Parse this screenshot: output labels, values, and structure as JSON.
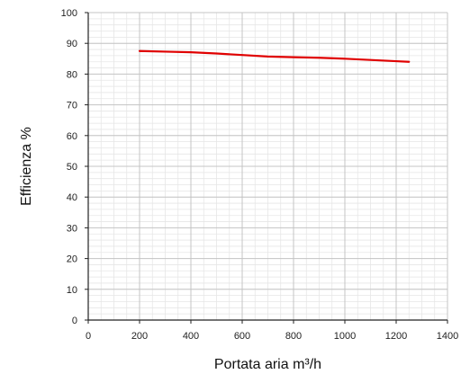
{
  "chart_data": {
    "type": "line",
    "title": "",
    "xlabel": "Portata aria m³/h",
    "ylabel": "Efficienza %",
    "xlim": [
      0,
      1400
    ],
    "ylim": [
      0,
      100
    ],
    "x_ticks": [
      0,
      200,
      400,
      600,
      800,
      1000,
      1200,
      1400
    ],
    "y_ticks": [
      0,
      10,
      20,
      30,
      40,
      50,
      60,
      70,
      80,
      90,
      100
    ],
    "x_minor_step": 50,
    "y_minor_step": 2,
    "grid": true,
    "legend": "none",
    "series": [
      {
        "color": "#e00000",
        "points": [
          {
            "x": 200,
            "y": 87.5
          },
          {
            "x": 300,
            "y": 87.3
          },
          {
            "x": 400,
            "y": 87.1
          },
          {
            "x": 500,
            "y": 86.7
          },
          {
            "x": 600,
            "y": 86.2
          },
          {
            "x": 700,
            "y": 85.7
          },
          {
            "x": 800,
            "y": 85.5
          },
          {
            "x": 900,
            "y": 85.3
          },
          {
            "x": 1000,
            "y": 85.0
          },
          {
            "x": 1100,
            "y": 84.6
          },
          {
            "x": 1200,
            "y": 84.2
          },
          {
            "x": 1250,
            "y": 84.0
          }
        ]
      }
    ]
  }
}
